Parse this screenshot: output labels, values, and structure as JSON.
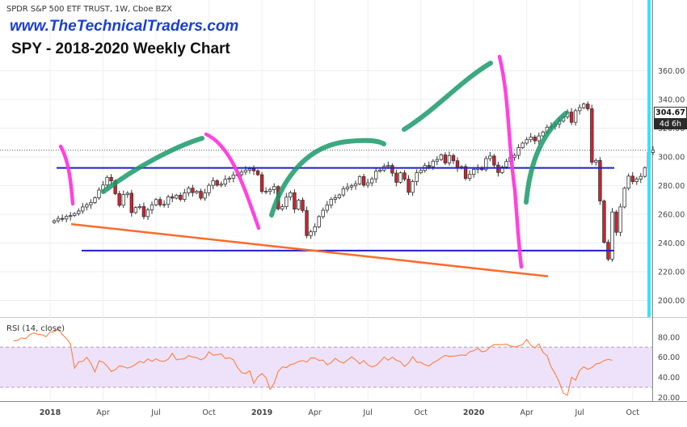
{
  "header": {
    "ohlc_title": "SPDR S&P 500 ETF TRUST, 1W, Cboe BZX",
    "brand_url": "www.TheTechnicalTraders.com",
    "chart_title": "SPY - 2018-2020 Weekly Chart",
    "rsi_title": "RSI (14, close)",
    "last_price": "304.67",
    "bar_timer": "4d 6h"
  },
  "colors": {
    "candle_up": "#ffffff",
    "candle_down": "#d81e2c",
    "candle_outline": "#333333",
    "horizontal_levels": "#1f1fcc",
    "trendline": "#ff6a2c",
    "decline_paths": "#ff33dd",
    "rally_paths": "#1a9a6a",
    "rsi_line": "#ff7f3f",
    "rsi_band_fill": "#eee2fb",
    "timer_line": "#33e5ff"
  },
  "chart_data": [
    {
      "type": "candlestick",
      "instrument": "SPDR S&P 500 ETF TRUST",
      "interval": "1W",
      "exchange": "Cboe BZX",
      "price_axis": {
        "side": "right",
        "ticks": [
          "200.00",
          "220.00",
          "240.00",
          "260.00",
          "280.00",
          "300.00",
          "320.00",
          "340.00",
          "360.00"
        ],
        "range": [
          192,
          364
        ]
      },
      "time_axis": {
        "ticks": [
          "2018",
          "Apr",
          "Jul",
          "Oct",
          "2019",
          "Apr",
          "Jul",
          "Oct",
          "2020",
          "Apr",
          "Jul",
          "Oct"
        ],
        "range_weeks_from_2018_01": [
          -10,
          145
        ]
      },
      "last_price": 304.67,
      "closes": [
        255.5,
        257.1,
        256.8,
        258.5,
        259.2,
        260.5,
        262.3,
        265.1,
        266.7,
        268.2,
        271.5,
        276.9,
        280.4,
        285.7,
        283.3,
        274.4,
        266.3,
        273.8,
        274.7,
        261.2,
        264.7,
        265.4,
        258.4,
        263.1,
        266.6,
        270.3,
        266.6,
        266.9,
        272.2,
        271.3,
        273.3,
        270.4,
        274.9,
        278.2,
        275.1,
        276.0,
        271.3,
        275.0,
        280.2,
        283.4,
        280.3,
        281.0,
        284.4,
        285.1,
        287.4,
        287.6,
        289.4,
        290.8,
        291.7,
        290.3,
        287.6,
        275.9,
        276.0,
        277.2,
        279.3,
        263.8,
        265.3,
        272.0,
        275.0,
        263.6,
        269.8,
        262.6,
        245.2,
        247.8,
        251.3,
        258.4,
        262.8,
        266.5,
        270.5,
        271.5,
        273.5,
        277.8,
        279.0,
        279.9,
        281.2,
        286.3,
        280.3,
        281.9,
        284.7,
        290.0,
        290.8,
        293.4,
        294.0,
        288.7,
        282.3,
        288.9,
        284.5,
        275.3,
        282.8,
        289.0,
        290.5,
        294.0,
        293.2,
        297.0,
        298.2,
        301.4,
        295.8,
        300.9,
        297.3,
        292.3,
        293.2,
        285.0,
        287.8,
        291.3,
        292.5,
        291.1,
        298.8,
        300.6,
        294.3,
        289.1,
        293.0,
        296.8,
        299.7,
        301.1,
        306.5,
        309.6,
        312.0,
        313.8,
        311.2,
        314.6,
        317.3,
        320.7,
        321.3,
        322.9,
        324.9,
        327.8,
        331.2,
        324.1,
        332.2,
        334.3,
        336.8,
        333.5,
        296.3,
        297.5,
        269.3,
        240.5,
        228.8,
        261.6,
        247.5,
        265.1,
        278.2,
        286.6,
        282.8,
        284.6,
        286.4,
        292.5,
        303.1,
        304.7
      ]
    },
    {
      "type": "line",
      "name": "RSI (14, close)",
      "y_axis": {
        "ticks": [
          "20.00",
          "40.00",
          "60.00",
          "80.00"
        ],
        "range": [
          14,
          90
        ],
        "band": [
          30,
          70
        ]
      },
      "values": [
        76.1,
        76.9,
        79.3,
        78.4,
        82.5,
        84.2,
        82.9,
        82.4,
        80.5,
        85.2,
        85.3,
        88.1,
        82.6,
        78.6,
        73.1,
        49.0,
        55.4,
        55.8,
        59.8,
        54.1,
        45.3,
        56.4,
        55.0,
        51.1,
        45.8,
        47.4,
        51.4,
        50.6,
        49.1,
        50.4,
        52.9,
        55.8,
        54.5,
        58.3,
        55.9,
        58.4,
        56.2,
        55.9,
        58.1,
        63.9,
        57.4,
        58.1,
        58.5,
        61.6,
        60.2,
        59.4,
        57.4,
        59.3,
        65.3,
        62.0,
        62.5,
        63.3,
        58.8,
        59.4,
        57.3,
        49.8,
        44.6,
        43.6,
        46.5,
        33.9,
        40.5,
        43.8,
        39.6,
        27.9,
        34.2,
        45.8,
        50.3,
        49.7,
        52.7,
        53.6,
        55.8,
        56.6,
        55.0,
        59.3,
        59.2,
        56.7,
        57.2,
        52.3,
        54.7,
        58.9,
        55.9,
        54.0,
        57.1,
        60.3,
        57.4,
        53.4,
        56.5,
        52.4,
        50.3,
        51.7,
        55.6,
        60.2,
        57.0,
        60.0,
        56.9,
        55.6,
        50.8,
        54.2,
        60.5,
        55.1,
        54.8,
        52.5,
        51.2,
        54.4,
        56.6,
        59.5,
        61.8,
        60.9,
        61.1,
        61.5,
        62.3,
        61.8,
        65.4,
        66.5,
        68.9,
        65.3,
        66.2,
        70.2,
        72.6,
        72.5,
        72.5,
        73.1,
        71.2,
        70.2,
        71.2,
        72.5,
        77.7,
        71.9,
        69.3,
        73.4,
        64.8,
        61.5,
        50.2,
        43.5,
        35.0,
        24.2,
        22.1,
        40.1,
        37.2,
        46.9,
        50.4,
        48.0,
        49.7,
        53.4,
        54.2,
        56.6,
        57.9,
        56.9
      ]
    }
  ],
  "drawings": {
    "horizontal_levels_price": [
      292.3,
      234.7
    ],
    "support_trendline_price": [
      253.2,
      216.8
    ]
  }
}
